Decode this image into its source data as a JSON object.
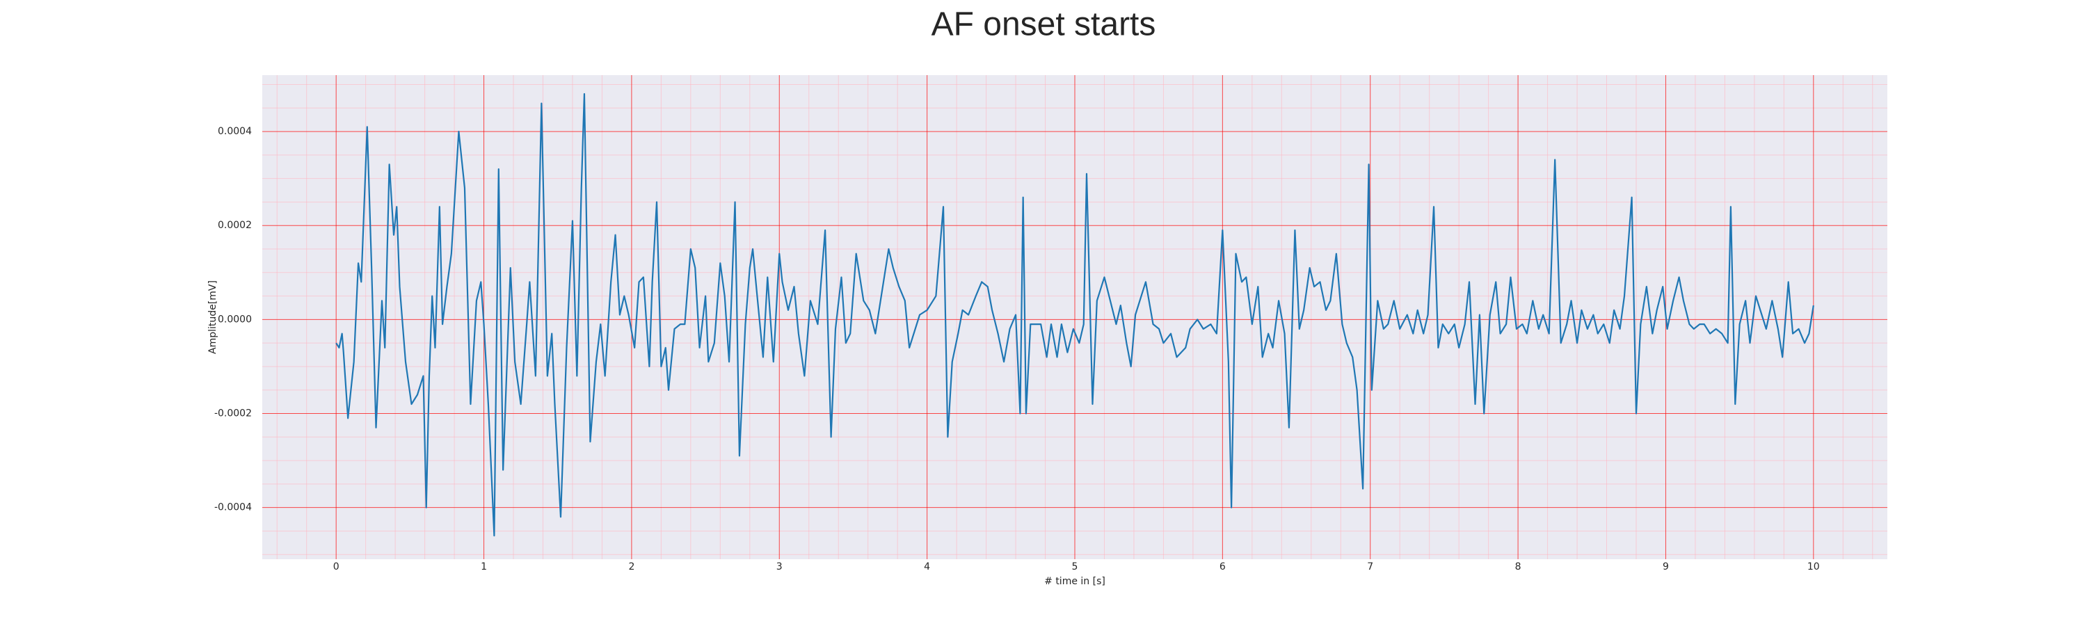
{
  "chart_data": {
    "type": "line",
    "title": "AF onset starts",
    "xlabel": "# time in [s]",
    "ylabel": "Amplitude[mV]",
    "color": "#1f77b4",
    "background": "#eaeaf2",
    "grid": true,
    "grid_color": "#ff0000",
    "minor_grid_color": "#ffb6c1",
    "xlim": [
      -0.5,
      10.5
    ],
    "ylim": [
      -0.00051,
      0.00052
    ],
    "xticks": [
      0,
      1,
      2,
      3,
      4,
      5,
      6,
      7,
      8,
      9,
      10
    ],
    "yticks": [
      {
        "value": -0.0004,
        "label": "-0.0004"
      },
      {
        "value": -0.0002,
        "label": "-0.0002"
      },
      {
        "value": 0,
        "label": "0.0000"
      },
      {
        "value": 0.0002,
        "label": "0.0002"
      },
      {
        "value": 0.0004,
        "label": "0.0004"
      }
    ],
    "xminor": [
      -0.4,
      -0.2,
      0.2,
      0.4,
      0.6,
      0.8,
      1.2,
      1.4,
      1.6,
      1.8,
      2.2,
      2.4,
      2.6,
      2.8,
      3.2,
      3.4,
      3.6,
      3.8,
      4.2,
      4.4,
      4.6,
      4.8,
      5.2,
      5.4,
      5.6,
      5.8,
      6.2,
      6.4,
      6.6,
      6.8,
      7.2,
      7.4,
      7.6,
      7.8,
      8.2,
      8.4,
      8.6,
      8.8,
      9.2,
      9.4,
      9.6,
      9.8,
      10.2,
      10.4
    ],
    "yminor": [
      -0.0005,
      -0.00045,
      -0.00035,
      -0.0003,
      -0.00025,
      -0.00015,
      -0.0001,
      -5e-05,
      5e-05,
      0.0001,
      0.00015,
      0.00025,
      0.0003,
      0.00035,
      0.00045,
      0.0005
    ],
    "x": [
      0,
      0.02,
      0.04,
      0.05,
      0.08,
      0.12,
      0.15,
      0.17,
      0.21,
      0.24,
      0.27,
      0.31,
      0.33,
      0.36,
      0.39,
      0.41,
      0.43,
      0.47,
      0.51,
      0.55,
      0.59,
      0.61,
      0.63,
      0.65,
      0.67,
      0.7,
      0.72,
      0.75,
      0.78,
      0.83,
      0.87,
      0.91,
      0.95,
      0.98,
      1.0,
      1.03,
      1.07,
      1.1,
      1.13,
      1.18,
      1.21,
      1.25,
      1.29,
      1.31,
      1.35,
      1.39,
      1.43,
      1.46,
      1.48,
      1.52,
      1.56,
      1.6,
      1.63,
      1.66,
      1.68,
      1.72,
      1.76,
      1.79,
      1.82,
      1.86,
      1.89,
      1.92,
      1.95,
      1.98,
      2.02,
      2.05,
      2.08,
      2.12,
      2.14,
      2.17,
      2.2,
      2.23,
      2.25,
      2.29,
      2.33,
      2.36,
      2.4,
      2.43,
      2.46,
      2.5,
      2.52,
      2.56,
      2.6,
      2.63,
      2.66,
      2.7,
      2.73,
      2.77,
      2.8,
      2.82,
      2.85,
      2.89,
      2.92,
      2.96,
      3.0,
      3.02,
      3.06,
      3.1,
      3.13,
      3.17,
      3.21,
      3.26,
      3.31,
      3.35,
      3.38,
      3.42,
      3.45,
      3.48,
      3.52,
      3.57,
      3.61,
      3.65,
      3.69,
      3.74,
      3.77,
      3.81,
      3.85,
      3.88,
      3.92,
      3.95,
      4.0,
      4.06,
      4.11,
      4.14,
      4.17,
      4.21,
      4.24,
      4.28,
      4.33,
      4.37,
      4.41,
      4.44,
      4.48,
      4.52,
      4.56,
      4.6,
      4.63,
      4.65,
      4.67,
      4.7,
      4.73,
      4.77,
      4.81,
      4.84,
      4.88,
      4.91,
      4.95,
      4.99,
      5.03,
      5.06,
      5.08,
      5.12,
      5.15,
      5.18,
      5.2,
      5.24,
      5.28,
      5.31,
      5.35,
      5.38,
      5.41,
      5.45,
      5.48,
      5.53,
      5.57,
      5.6,
      5.65,
      5.69,
      5.75,
      5.78,
      5.83,
      5.87,
      5.92,
      5.96,
      6.0,
      6.04,
      6.06,
      6.09,
      6.13,
      6.16,
      6.2,
      6.24,
      6.27,
      6.31,
      6.34,
      6.38,
      6.42,
      6.45,
      6.49,
      6.52,
      6.55,
      6.59,
      6.62,
      6.66,
      6.7,
      6.73,
      6.77,
      6.81,
      6.84,
      6.88,
      6.91,
      6.95,
      6.99,
      7.01,
      7.05,
      7.09,
      7.12,
      7.16,
      7.2,
      7.25,
      7.29,
      7.32,
      7.36,
      7.39,
      7.43,
      7.46,
      7.49,
      7.53,
      7.57,
      7.6,
      7.64,
      7.67,
      7.71,
      7.74,
      7.77,
      7.81,
      7.85,
      7.88,
      7.92,
      7.95,
      7.99,
      8.03,
      8.06,
      8.1,
      8.14,
      8.17,
      8.21,
      8.25,
      8.29,
      8.33,
      8.36,
      8.4,
      8.43,
      8.47,
      8.51,
      8.54,
      8.58,
      8.62,
      8.65,
      8.69,
      8.72,
      8.77,
      8.8,
      8.83,
      8.87,
      8.91,
      8.94,
      8.98,
      9.01,
      9.05,
      9.09,
      9.12,
      9.16,
      9.19,
      9.23,
      9.26,
      9.3,
      9.34,
      9.38,
      9.42,
      9.44,
      9.47,
      9.5,
      9.54,
      9.57,
      9.61,
      9.65,
      9.68,
      9.72,
      9.76,
      9.79,
      9.83,
      9.86,
      9.9,
      9.94,
      9.97,
      10.0
    ],
    "values": [
      -5e-05,
      -6e-05,
      -3e-05,
      -7e-05,
      -0.00021,
      -9e-05,
      0.00012,
      8e-05,
      0.00041,
      0.00011,
      -0.00023,
      4e-05,
      -6e-05,
      0.00033,
      0.00018,
      0.00024,
      7e-05,
      -9e-05,
      -0.00018,
      -0.00016,
      -0.00012,
      -0.0004,
      -0.00012,
      5e-05,
      -6e-05,
      0.00024,
      -1e-05,
      7e-05,
      0.00014,
      0.0004,
      0.00028,
      -0.00018,
      4e-05,
      8e-05,
      -1e-05,
      -0.00018,
      -0.00046,
      0.00032,
      -0.00032,
      0.00011,
      -9e-05,
      -0.00018,
      -1e-05,
      8e-05,
      -0.00012,
      0.00046,
      -0.00012,
      -3e-05,
      -0.00018,
      -0.00042,
      -6e-05,
      0.00021,
      -0.00012,
      0.00028,
      0.00048,
      -0.00026,
      -9e-05,
      -1e-05,
      -0.00012,
      8e-05,
      0.00018,
      1e-05,
      5e-05,
      1e-05,
      -6e-05,
      8e-05,
      9e-05,
      -0.0001,
      8e-05,
      0.00025,
      -0.0001,
      -6e-05,
      -0.00015,
      -2e-05,
      -1e-05,
      -1e-05,
      0.00015,
      0.00011,
      -6e-05,
      5e-05,
      -9e-05,
      -5e-05,
      0.00012,
      5e-05,
      -9e-05,
      0.00025,
      -0.00029,
      -1e-05,
      0.00011,
      0.00015,
      5e-05,
      -8e-05,
      9e-05,
      -9e-05,
      0.00014,
      8e-05,
      2e-05,
      7e-05,
      -3e-05,
      -0.00012,
      4e-05,
      -1e-05,
      0.00019,
      -0.00025,
      -2e-05,
      9e-05,
      -5e-05,
      -3e-05,
      0.00014,
      4e-05,
      2e-05,
      -3e-05,
      5e-05,
      0.00015,
      0.00011,
      7e-05,
      4e-05,
      -6e-05,
      -2e-05,
      1e-05,
      2e-05,
      5e-05,
      0.00024,
      -0.00025,
      -9e-05,
      -3e-05,
      2e-05,
      1e-05,
      5e-05,
      8e-05,
      7e-05,
      2e-05,
      -3e-05,
      -9e-05,
      -2e-05,
      1e-05,
      -0.0002,
      0.00026,
      -0.0002,
      -1e-05,
      -1e-05,
      -1e-05,
      -8e-05,
      -1e-05,
      -8e-05,
      -1e-05,
      -7e-05,
      -2e-05,
      -5e-05,
      -1e-05,
      0.00031,
      -0.00018,
      4e-05,
      7e-05,
      9e-05,
      4e-05,
      -1e-05,
      3e-05,
      -5e-05,
      -0.0001,
      1e-05,
      5e-05,
      8e-05,
      -1e-05,
      -2e-05,
      -5e-05,
      -3e-05,
      -8e-05,
      -6e-05,
      -2e-05,
      0,
      -2e-05,
      -1e-05,
      -3e-05,
      0.00019,
      -9e-05,
      -0.0004,
      0.00014,
      8e-05,
      9e-05,
      -1e-05,
      7e-05,
      -8e-05,
      -3e-05,
      -6e-05,
      4e-05,
      -3e-05,
      -0.00023,
      0.00019,
      -2e-05,
      2e-05,
      0.00011,
      7e-05,
      8e-05,
      2e-05,
      4e-05,
      0.00014,
      -1e-05,
      -5e-05,
      -8e-05,
      -0.00015,
      -0.00036,
      0.00033,
      -0.00015,
      4e-05,
      -2e-05,
      -1e-05,
      4e-05,
      -2e-05,
      1e-05,
      -3e-05,
      2e-05,
      -3e-05,
      1e-05,
      0.00024,
      -6e-05,
      -1e-05,
      -3e-05,
      -1e-05,
      -6e-05,
      -1e-05,
      8e-05,
      -0.00018,
      1e-05,
      -0.0002,
      1e-05,
      8e-05,
      -3e-05,
      -1e-05,
      9e-05,
      -2e-05,
      -1e-05,
      -3e-05,
      4e-05,
      -2e-05,
      1e-05,
      -3e-05,
      0.00034,
      -5e-05,
      -1e-05,
      4e-05,
      -5e-05,
      2e-05,
      -2e-05,
      1e-05,
      -3e-05,
      -1e-05,
      -5e-05,
      2e-05,
      -2e-05,
      5e-05,
      0.00026,
      -0.0002,
      -1e-05,
      7e-05,
      -3e-05,
      2e-05,
      7e-05,
      -2e-05,
      4e-05,
      9e-05,
      4e-05,
      -1e-05,
      -2e-05,
      -1e-05,
      -1e-05,
      -3e-05,
      -2e-05,
      -3e-05,
      -5e-05,
      0.00024,
      -0.00018,
      -1e-05,
      4e-05,
      -5e-05,
      5e-05,
      1e-05,
      -2e-05,
      4e-05,
      -2e-05,
      -8e-05,
      8e-05,
      -3e-05,
      -2e-05,
      -5e-05,
      -3e-05,
      3e-05
    ]
  }
}
